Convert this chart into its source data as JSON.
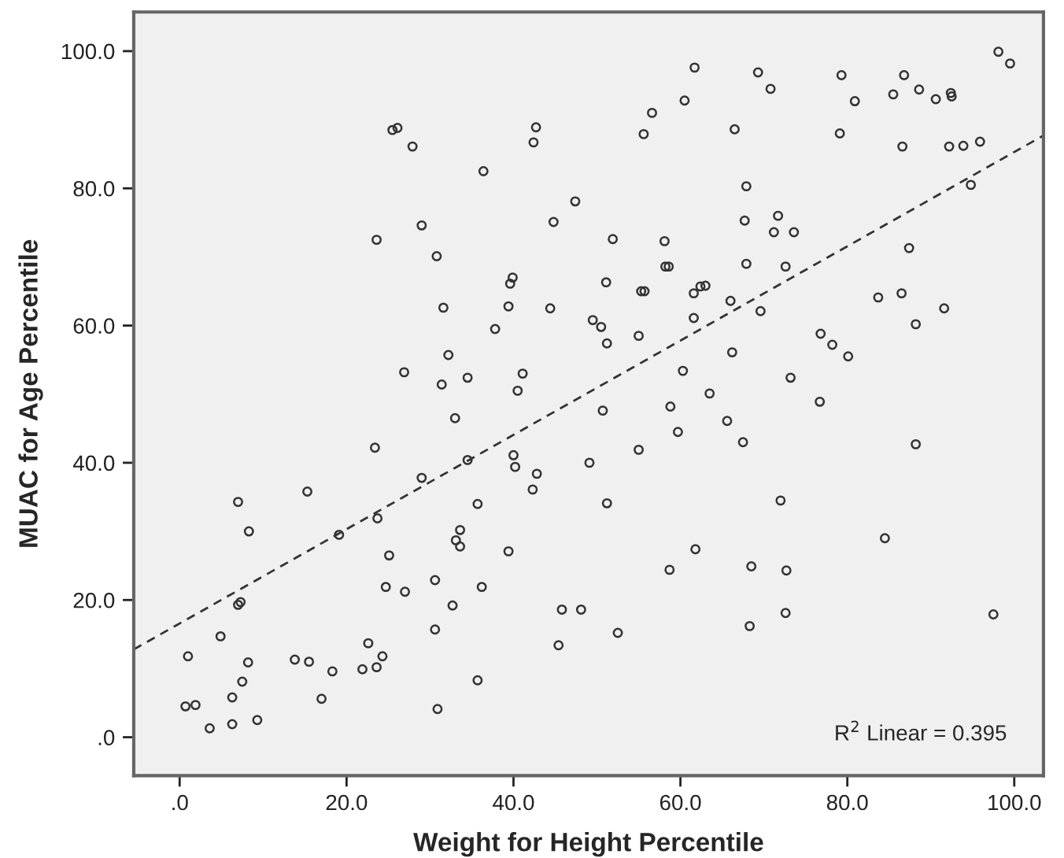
{
  "chart_data": {
    "type": "scatter",
    "xlabel": "Weight for Height Percentile",
    "ylabel": "MUAC for Age Percentile",
    "xlim": [
      -5.5,
      103.5
    ],
    "ylim": [
      -5.6,
      105.7
    ],
    "xticks": [
      {
        "value": 0,
        "label": ".0"
      },
      {
        "value": 20,
        "label": "20.0"
      },
      {
        "value": 40,
        "label": "40.0"
      },
      {
        "value": 60,
        "label": "60.0"
      },
      {
        "value": 80,
        "label": "80.0"
      },
      {
        "value": 100,
        "label": "100.0"
      }
    ],
    "yticks": [
      {
        "value": 0,
        "label": ".0"
      },
      {
        "value": 20,
        "label": "20.0"
      },
      {
        "value": 40,
        "label": "40.0"
      },
      {
        "value": 60,
        "label": "60.0"
      },
      {
        "value": 80,
        "label": "80.0"
      },
      {
        "value": 100,
        "label": "100.0"
      }
    ],
    "grid": false,
    "legend": false,
    "series": [
      {
        "color": "#333333",
        "marker": "circle",
        "x": [
          25.5,
          26.1,
          27.9,
          36.4,
          42.7,
          42.4,
          47.4,
          44.8,
          29.0,
          23.6,
          30.8,
          39.9,
          39.6,
          31.6,
          39.4,
          44.4,
          37.8,
          32.2,
          26.9,
          31.4,
          34.5,
          41.1,
          40.5,
          98.1,
          99.5,
          61.7,
          69.3,
          70.8,
          79.3,
          86.8,
          80.9,
          85.5,
          88.6,
          90.6,
          92.4,
          92.5,
          60.5,
          56.6,
          55.6,
          66.5,
          79.1,
          86.6,
          92.2,
          93.9,
          95.9,
          94.8,
          67.9,
          67.7,
          71.7,
          71.2,
          73.6,
          51.9,
          58.1,
          58.2,
          58.6,
          67.9,
          72.6,
          87.4,
          51.1,
          55.3,
          55.7,
          61.6,
          62.4,
          63.0,
          66.0,
          69.6,
          83.7,
          86.5,
          91.6,
          88.2,
          49.5,
          50.5,
          51.2,
          55.0,
          61.6,
          76.8,
          78.2,
          80.1,
          66.2,
          60.3,
          73.2,
          63.5,
          50.7,
          58.8,
          76.7,
          65.6,
          59.7,
          67.5,
          55.0,
          88.2,
          49.1,
          51.2,
          72.0,
          84.5,
          61.8,
          58.7,
          68.5,
          72.7,
          48.1,
          72.6,
          97.5,
          68.3,
          52.5,
          33.0,
          23.4,
          34.5,
          40.0,
          40.2,
          42.8,
          42.3,
          29.0,
          15.3,
          7.0,
          35.7,
          8.3,
          23.7,
          19.1,
          33.6,
          33.1,
          33.6,
          25.1,
          39.4,
          30.6,
          24.7,
          27.0,
          36.2,
          32.7,
          7.3,
          7.0,
          45.8,
          4.9,
          30.6,
          45.4,
          22.6,
          1.0,
          24.3,
          13.8,
          15.5,
          8.2,
          21.9,
          23.6,
          18.3,
          7.5,
          35.7,
          6.3,
          17.0,
          0.7,
          1.9,
          30.9,
          9.3,
          6.3,
          3.6
        ],
        "values": [
          88.5,
          88.8,
          86.1,
          82.5,
          88.9,
          86.7,
          78.1,
          75.1,
          74.6,
          72.5,
          70.1,
          67.0,
          66.1,
          62.6,
          62.8,
          62.5,
          59.5,
          55.7,
          53.2,
          51.4,
          52.4,
          53.0,
          50.5,
          99.9,
          98.2,
          97.6,
          96.9,
          94.5,
          96.5,
          96.5,
          92.7,
          93.7,
          94.4,
          93.0,
          93.9,
          93.4,
          92.8,
          91.0,
          87.9,
          88.6,
          88.0,
          86.1,
          86.1,
          86.2,
          86.8,
          80.5,
          80.3,
          75.3,
          76.0,
          73.6,
          73.6,
          72.6,
          72.3,
          68.6,
          68.6,
          69.0,
          68.6,
          71.3,
          66.3,
          65.0,
          65.0,
          64.7,
          65.7,
          65.8,
          63.6,
          62.1,
          64.1,
          64.7,
          62.5,
          60.2,
          60.8,
          59.8,
          57.4,
          58.5,
          61.1,
          58.8,
          57.2,
          55.5,
          56.1,
          53.4,
          52.4,
          50.1,
          47.6,
          48.2,
          48.9,
          46.1,
          44.5,
          43.0,
          41.9,
          42.7,
          40.0,
          34.1,
          34.5,
          29.0,
          27.4,
          24.4,
          24.9,
          24.3,
          18.6,
          18.1,
          17.9,
          16.2,
          15.2,
          46.5,
          42.2,
          40.4,
          41.1,
          39.4,
          38.4,
          36.1,
          37.8,
          35.8,
          34.3,
          34.0,
          30.0,
          31.9,
          29.5,
          30.2,
          28.7,
          27.8,
          26.5,
          27.1,
          22.9,
          21.9,
          21.2,
          21.9,
          19.2,
          19.7,
          19.3,
          18.6,
          14.7,
          15.7,
          13.4,
          13.7,
          11.8,
          11.8,
          11.3,
          11.0,
          10.9,
          9.9,
          10.2,
          9.6,
          8.1,
          8.3,
          5.8,
          5.6,
          4.5,
          4.7,
          4.1,
          2.5,
          1.9,
          1.3
        ]
      },
      {
        "type": "line",
        "color": "#333333",
        "line_style": "dashed",
        "x": [
          -5.5,
          103.5
        ],
        "values": [
          12.8,
          87.7
        ]
      }
    ],
    "annotations": [
      "R$^{2}$ Linear = 0.395"
    ]
  }
}
